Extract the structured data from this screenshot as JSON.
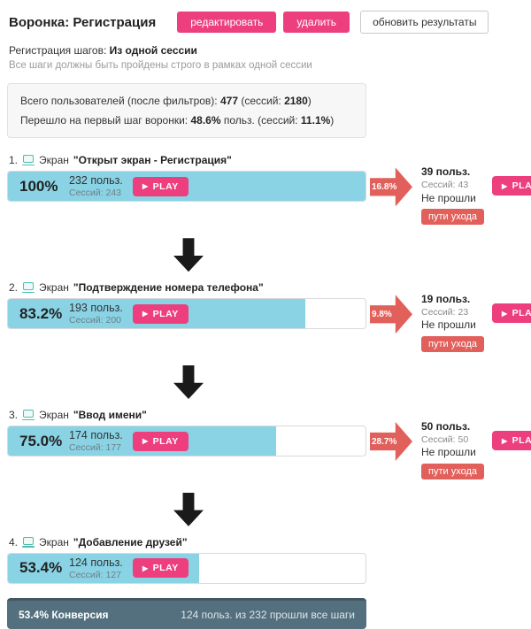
{
  "header": {
    "title": "Воронка: Регистрация",
    "edit_label": "редактировать",
    "delete_label": "удалить",
    "refresh_label": "обновить результаты"
  },
  "settings": {
    "label": "Регистрация шагов: ",
    "value": "Из одной сессии",
    "note": "Все шаги должны быть пройдены строго в рамках одной сессии"
  },
  "summary": {
    "line1": {
      "t1": "Всего пользователей (после фильтров): ",
      "b1": "477",
      "t2": " (сессий: ",
      "b2": "2180",
      "t3": ")"
    },
    "line2": {
      "t1": "Перешло на первый шаг воронки: ",
      "b1": "48.6%",
      "t2": " польз. (сессий: ",
      "b2": "11.1%",
      "t3": ")"
    }
  },
  "labels": {
    "screen": "Экран",
    "play": "PLAY",
    "not_passed": "Не прошли",
    "exit_paths": "пути ухода"
  },
  "icons": {
    "play": "▶"
  },
  "colors": {
    "accent_pink": "#ed3f7d",
    "bar_blue": "#89d3e5",
    "dropoff_red": "#e2605b",
    "footer_slate": "#54707e",
    "screen_icon_teal": "#4fbcae"
  },
  "steps": [
    {
      "index": "1.",
      "name": "\"Открыт экран - Регистрация\"",
      "percent": "100%",
      "users": "232 польз.",
      "sessions": "Сессий: 243",
      "fill": 100,
      "dropoff": {
        "percent": "16.8%",
        "users": "39 польз.",
        "sessions": "Сессий: 43"
      }
    },
    {
      "index": "2.",
      "name": "\"Подтверждение номера телефона\"",
      "percent": "83.2%",
      "users": "193 польз.",
      "sessions": "Сессий: 200",
      "fill": 83.2,
      "dropoff": {
        "percent": "9.8%",
        "users": "19 польз.",
        "sessions": "Сессий: 23"
      }
    },
    {
      "index": "3.",
      "name": "\"Ввод имени\"",
      "percent": "75.0%",
      "users": "174 польз.",
      "sessions": "Сессий: 177",
      "fill": 75,
      "dropoff": {
        "percent": "28.7%",
        "users": "50 польз.",
        "sessions": "Сессий: 50"
      }
    },
    {
      "index": "4.",
      "name": "\"Добавление друзей\"",
      "percent": "53.4%",
      "users": "124 польз.",
      "sessions": "Сессий: 127",
      "fill": 53.4,
      "dropoff": null
    }
  ],
  "footer": {
    "conversion": "53.4% Конверсия",
    "detail": "124 польз. из 232 прошли все шаги"
  }
}
